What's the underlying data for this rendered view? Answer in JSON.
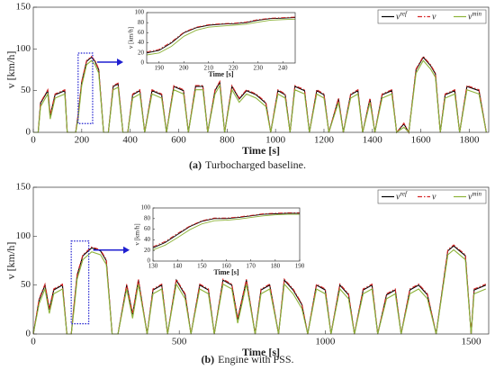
{
  "chart_data": [
    {
      "type": "line",
      "caption_label": "(a)",
      "caption": "Turbocharged baseline.",
      "x_label": "Time [s]",
      "y_label": "v [km/h]",
      "xlim": [
        0,
        1880
      ],
      "ylim": [
        0,
        150
      ],
      "xticks": [
        0,
        200,
        400,
        600,
        800,
        1000,
        1200,
        1400,
        1600,
        1800
      ],
      "yticks": [
        0,
        50,
        100,
        150
      ],
      "legend": "upper right",
      "x": [
        0,
        20,
        30,
        60,
        70,
        90,
        130,
        140,
        175,
        185,
        200,
        220,
        240,
        255,
        270,
        290,
        310,
        330,
        350,
        370,
        390,
        410,
        440,
        460,
        490,
        530,
        550,
        580,
        620,
        640,
        670,
        700,
        720,
        750,
        770,
        790,
        820,
        850,
        880,
        920,
        960,
        980,
        1010,
        1040,
        1060,
        1080,
        1120,
        1140,
        1170,
        1200,
        1220,
        1260,
        1280,
        1310,
        1340,
        1360,
        1390,
        1410,
        1440,
        1480,
        1500,
        1530,
        1550,
        1580,
        1610,
        1640,
        1660,
        1680,
        1700,
        1740,
        1760,
        1790,
        1840,
        1870
      ],
      "series": [
        {
          "name": "v",
          "sup": "ref",
          "color": "#000000",
          "values": [
            0,
            0,
            35,
            50,
            20,
            45,
            50,
            0,
            0,
            20,
            60,
            85,
            90,
            85,
            75,
            0,
            0,
            55,
            58,
            0,
            0,
            45,
            50,
            0,
            50,
            45,
            0,
            55,
            50,
            0,
            55,
            55,
            0,
            50,
            60,
            0,
            55,
            40,
            50,
            45,
            35,
            0,
            50,
            45,
            0,
            55,
            50,
            0,
            50,
            45,
            0,
            40,
            0,
            45,
            50,
            0,
            40,
            0,
            45,
            50,
            0,
            10,
            0,
            75,
            90,
            80,
            70,
            0,
            45,
            50,
            0,
            55,
            50,
            0
          ]
        },
        {
          "name": "v",
          "color": "#d62728",
          "values": [
            0,
            0,
            36,
            51,
            21,
            46,
            51,
            0,
            0,
            21,
            61,
            86,
            91,
            86,
            76,
            0,
            0,
            56,
            59,
            0,
            0,
            46,
            51,
            0,
            51,
            46,
            0,
            56,
            51,
            0,
            56,
            56,
            0,
            51,
            61,
            0,
            56,
            41,
            51,
            46,
            36,
            0,
            51,
            46,
            0,
            56,
            51,
            0,
            51,
            46,
            0,
            41,
            0,
            46,
            51,
            0,
            41,
            0,
            46,
            51,
            0,
            11,
            0,
            76,
            91,
            81,
            71,
            0,
            46,
            51,
            0,
            56,
            51,
            0
          ]
        },
        {
          "name": "v",
          "sup": "min",
          "color": "#8db33a",
          "values": [
            0,
            0,
            31,
            46,
            16,
            41,
            46,
            0,
            0,
            16,
            56,
            81,
            86,
            81,
            71,
            0,
            0,
            51,
            54,
            0,
            0,
            41,
            46,
            0,
            46,
            41,
            0,
            51,
            46,
            0,
            51,
            51,
            0,
            46,
            56,
            0,
            51,
            36,
            46,
            41,
            31,
            0,
            46,
            41,
            0,
            51,
            46,
            0,
            46,
            41,
            0,
            36,
            0,
            41,
            46,
            0,
            36,
            0,
            41,
            46,
            0,
            6,
            0,
            71,
            86,
            76,
            66,
            0,
            41,
            46,
            0,
            51,
            46,
            0
          ]
        }
      ]
    },
    {
      "type": "line",
      "x_label": "Time [s]",
      "y_label": "v [km/h]",
      "xlim": [
        185,
        245
      ],
      "ylim": [
        0,
        100
      ],
      "xticks": [
        190,
        200,
        210,
        220,
        230,
        240
      ],
      "yticks": [
        0,
        20,
        40,
        60,
        80,
        100
      ],
      "x": [
        185,
        190,
        195,
        200,
        205,
        210,
        215,
        220,
        225,
        230,
        235,
        240,
        245
      ],
      "series": [
        {
          "color": "#000000",
          "values": [
            20,
            25,
            40,
            60,
            70,
            75,
            77,
            78,
            80,
            85,
            88,
            89,
            90
          ]
        },
        {
          "color": "#d62728",
          "values": [
            22,
            27,
            42,
            61,
            71,
            76,
            78,
            79,
            81,
            86,
            89,
            90,
            91
          ]
        },
        {
          "color": "#8db33a",
          "values": [
            16,
            20,
            33,
            53,
            65,
            71,
            73,
            75,
            77,
            81,
            85,
            86,
            87
          ]
        }
      ]
    },
    {
      "type": "line",
      "caption_label": "(b)",
      "caption": "Engine with PSS.",
      "x_label": "Time [s]",
      "y_label": "v [km/h]",
      "xlim": [
        0,
        1560
      ],
      "ylim": [
        0,
        150
      ],
      "xticks": [
        0,
        500,
        1000,
        1500
      ],
      "yticks": [
        0,
        50,
        100,
        150
      ],
      "legend": "upper right",
      "x": [
        0,
        20,
        40,
        55,
        70,
        100,
        115,
        130,
        140,
        150,
        170,
        200,
        230,
        250,
        270,
        290,
        320,
        340,
        360,
        390,
        410,
        440,
        460,
        490,
        520,
        540,
        570,
        600,
        620,
        650,
        680,
        700,
        730,
        760,
        780,
        810,
        840,
        860,
        890,
        920,
        940,
        970,
        1000,
        1020,
        1050,
        1080,
        1100,
        1130,
        1160,
        1180,
        1210,
        1240,
        1260,
        1290,
        1320,
        1350,
        1380,
        1420,
        1440,
        1480,
        1500,
        1510,
        1550
      ],
      "series": [
        {
          "name": "v",
          "sup": "ref",
          "color": "#000000",
          "values": [
            0,
            35,
            50,
            25,
            45,
            50,
            0,
            0,
            30,
            60,
            80,
            88,
            85,
            75,
            0,
            0,
            50,
            20,
            55,
            0,
            45,
            50,
            0,
            55,
            40,
            0,
            50,
            45,
            0,
            55,
            50,
            15,
            55,
            0,
            45,
            50,
            0,
            55,
            45,
            30,
            0,
            50,
            45,
            0,
            50,
            40,
            0,
            45,
            50,
            0,
            40,
            45,
            0,
            45,
            50,
            40,
            0,
            85,
            90,
            80,
            0,
            45,
            50
          ]
        },
        {
          "name": "v",
          "color": "#d62728",
          "values": [
            0,
            36,
            51,
            26,
            46,
            51,
            0,
            0,
            31,
            61,
            81,
            89,
            86,
            76,
            0,
            0,
            51,
            21,
            56,
            0,
            46,
            51,
            0,
            56,
            41,
            0,
            51,
            46,
            0,
            56,
            51,
            16,
            56,
            0,
            46,
            51,
            0,
            56,
            46,
            31,
            0,
            51,
            46,
            0,
            51,
            41,
            0,
            46,
            51,
            0,
            41,
            46,
            0,
            46,
            51,
            41,
            0,
            86,
            91,
            81,
            0,
            46,
            51
          ]
        },
        {
          "name": "v",
          "sup": "min",
          "color": "#8db33a",
          "values": [
            0,
            31,
            46,
            21,
            41,
            46,
            0,
            0,
            26,
            56,
            76,
            84,
            81,
            71,
            0,
            0,
            46,
            16,
            51,
            0,
            41,
            46,
            0,
            51,
            36,
            0,
            46,
            41,
            0,
            51,
            46,
            11,
            51,
            0,
            41,
            46,
            0,
            51,
            41,
            26,
            0,
            46,
            41,
            0,
            46,
            36,
            0,
            41,
            46,
            0,
            36,
            41,
            0,
            41,
            46,
            36,
            0,
            81,
            86,
            76,
            0,
            41,
            46
          ]
        }
      ]
    },
    {
      "type": "line",
      "x_label": "Time [s]",
      "y_label": "v [km/h]",
      "xlim": [
        130,
        190
      ],
      "ylim": [
        0,
        100
      ],
      "xticks": [
        130,
        140,
        150,
        160,
        170,
        180,
        190
      ],
      "yticks": [
        0,
        20,
        40,
        60,
        80,
        100
      ],
      "x": [
        130,
        135,
        140,
        145,
        150,
        155,
        160,
        165,
        170,
        175,
        180,
        185,
        190
      ],
      "series": [
        {
          "color": "#000000",
          "values": [
            25,
            35,
            50,
            65,
            75,
            80,
            80,
            82,
            85,
            88,
            89,
            90,
            90
          ]
        },
        {
          "color": "#d62728",
          "values": [
            27,
            37,
            52,
            66,
            76,
            81,
            81,
            83,
            86,
            89,
            90,
            91,
            91
          ]
        },
        {
          "color": "#8db33a",
          "values": [
            21,
            30,
            44,
            59,
            70,
            76,
            77,
            79,
            82,
            85,
            87,
            88,
            88
          ]
        }
      ]
    }
  ]
}
